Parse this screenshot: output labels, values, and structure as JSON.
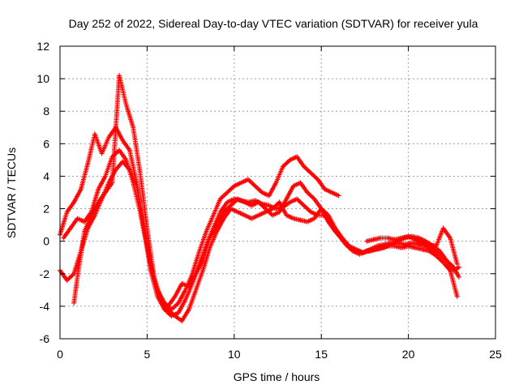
{
  "chart_data": {
    "type": "scatter",
    "title": "Day 252 of 2022, Sidereal Day-to-day VTEC variation (SDTVAR) for receiver yula",
    "xlabel": "GPS time / hours",
    "ylabel": "SDTVAR / TECUs",
    "xlim": [
      0,
      25
    ],
    "ylim": [
      -6,
      12
    ],
    "xticks": [
      0,
      5,
      10,
      15,
      20,
      25
    ],
    "yticks": [
      -6,
      -4,
      -2,
      0,
      2,
      4,
      6,
      8,
      10,
      12
    ],
    "xtick_labels": [
      "0",
      "5",
      "10",
      "15",
      "20",
      "25"
    ],
    "ytick_labels": [
      "-6",
      "-4",
      "-2",
      "0",
      "2",
      "4",
      "6",
      "8",
      "10",
      "12"
    ],
    "grid": true,
    "marker": "plus",
    "color": "#ff0000",
    "series": [
      {
        "name": "track-1",
        "x": [
          0.0,
          0.4,
          0.8,
          1.2,
          1.6,
          2.0,
          2.4,
          2.8,
          3.2,
          3.6,
          4.0,
          4.4,
          4.8,
          5.2,
          5.6,
          6.0,
          6.4,
          6.8,
          7.2,
          7.6,
          8.0,
          8.4,
          8.8,
          9.2,
          9.6,
          10.0,
          10.4,
          10.8,
          11.2,
          11.6,
          12.0,
          12.4,
          12.8,
          13.2,
          13.6,
          14.0,
          14.4,
          14.8,
          15.2,
          15.6,
          16.0
        ],
        "y": [
          0.4,
          1.8,
          2.4,
          3.2,
          4.8,
          6.6,
          5.4,
          6.4,
          7.0,
          6.2,
          5.6,
          3.6,
          1.0,
          -1.4,
          -3.0,
          -3.8,
          -4.2,
          -3.8,
          -3.0,
          -2.0,
          -0.6,
          0.6,
          1.6,
          2.6,
          3.0,
          3.4,
          3.6,
          3.8,
          3.4,
          3.0,
          2.8,
          3.6,
          4.6,
          5.0,
          5.2,
          4.6,
          4.2,
          3.8,
          3.2,
          3.0,
          2.8
        ]
      },
      {
        "name": "track-2",
        "x": [
          0.0,
          0.4,
          0.8,
          1.2,
          1.6,
          2.0,
          2.4,
          2.8,
          3.2,
          3.6,
          4.0,
          4.4,
          4.8,
          5.2,
          5.6,
          6.0,
          6.4,
          6.8,
          7.2,
          7.6,
          8.0,
          8.4,
          8.8,
          9.2,
          9.6,
          10.0,
          10.4,
          10.8,
          11.2,
          11.6,
          12.0,
          12.4,
          12.8,
          13.2,
          13.6,
          14.0,
          14.4,
          14.8,
          15.2,
          15.6,
          16.0,
          16.4,
          16.8,
          17.2,
          17.6,
          18.0,
          18.4,
          18.8,
          19.2,
          19.6,
          20.0,
          20.4,
          20.8,
          21.2,
          21.6,
          22.0,
          22.4,
          22.8
        ],
        "y": [
          -1.8,
          -2.4,
          -2.0,
          -0.6,
          0.8,
          1.6,
          2.6,
          3.6,
          4.4,
          4.9,
          4.4,
          3.4,
          1.0,
          -1.8,
          -3.4,
          -4.2,
          -4.6,
          -4.4,
          -3.6,
          -2.6,
          -1.4,
          -0.2,
          0.8,
          1.8,
          2.4,
          2.6,
          2.5,
          2.4,
          2.5,
          2.3,
          2.2,
          2.0,
          2.1,
          2.4,
          2.6,
          2.2,
          1.8,
          1.6,
          1.6,
          1.0,
          0.4,
          -0.2,
          -0.6,
          -0.8,
          -0.6,
          -0.5,
          -0.4,
          -0.3,
          -0.3,
          -0.4,
          -0.3,
          -0.4,
          -0.5,
          -0.6,
          -0.9,
          -1.3,
          -1.8,
          -3.4
        ]
      },
      {
        "name": "track-3",
        "x": [
          0.2,
          0.6,
          1.0,
          1.4,
          1.8,
          2.2,
          2.6,
          3.0,
          3.4,
          3.8,
          4.2,
          4.6,
          5.0,
          5.4,
          5.8,
          6.2,
          6.6,
          7.0,
          7.4,
          7.8,
          8.2,
          8.6,
          9.0,
          9.4,
          9.8,
          10.2,
          10.6,
          11.0,
          11.4,
          11.8,
          12.2,
          12.6,
          13.0,
          13.4,
          13.8,
          14.2,
          14.6,
          15.0,
          15.4,
          15.8,
          16.2,
          16.6,
          17.0,
          17.4,
          17.8,
          18.2,
          18.6,
          19.0,
          19.4,
          19.8,
          20.2,
          20.6,
          21.0,
          21.4,
          21.8,
          22.2,
          22.6,
          22.9
        ],
        "y": [
          0.2,
          0.8,
          1.4,
          1.2,
          1.8,
          3.2,
          4.0,
          5.2,
          5.6,
          5.0,
          3.6,
          1.8,
          -0.4,
          -2.4,
          -3.6,
          -4.0,
          -3.4,
          -2.6,
          -2.8,
          -2.0,
          -1.2,
          0.2,
          1.0,
          1.8,
          2.2,
          2.6,
          2.4,
          2.2,
          2.4,
          2.0,
          1.6,
          1.8,
          2.6,
          3.4,
          3.6,
          3.0,
          2.6,
          2.0,
          1.2,
          0.6,
          0.1,
          -0.3,
          -0.5,
          -0.7,
          -0.5,
          -0.3,
          -0.2,
          -0.1,
          -0.1,
          -0.2,
          -0.1,
          -0.2,
          -0.3,
          -0.5,
          -0.8,
          -1.2,
          -1.6,
          -2.2
        ]
      },
      {
        "name": "track-4",
        "x": [
          0.8,
          1.0,
          1.4,
          1.8,
          2.2,
          2.6,
          3.0,
          3.4,
          3.8,
          4.2,
          4.6,
          5.0,
          5.4,
          5.8,
          6.2,
          6.6,
          7.0,
          7.4,
          7.8,
          8.2,
          8.6,
          9.0,
          9.4,
          9.8,
          10.2,
          10.6,
          11.0,
          11.4,
          11.8,
          12.2,
          12.6,
          13.0,
          13.4,
          13.8,
          14.2,
          14.6,
          15.0,
          15.4,
          15.8,
          16.2,
          16.6,
          17.0,
          17.4,
          17.8,
          18.2,
          18.6,
          19.0,
          19.4,
          19.8,
          20.2,
          20.6,
          21.0,
          21.4,
          21.8,
          22.2,
          22.6,
          22.9
        ],
        "y": [
          -3.8,
          -2.2,
          0.6,
          1.6,
          2.4,
          3.0,
          3.6,
          10.2,
          8.4,
          7.0,
          4.2,
          0.8,
          -2.2,
          -3.6,
          -4.2,
          -4.6,
          -4.9,
          -4.2,
          -3.0,
          -1.8,
          -0.4,
          0.6,
          1.4,
          2.0,
          1.8,
          1.6,
          1.4,
          1.6,
          1.8,
          2.0,
          2.4,
          1.6,
          1.4,
          1.3,
          1.2,
          1.4,
          2.0,
          1.6,
          0.8,
          0.2,
          -0.3,
          -0.6,
          -0.7,
          -0.6,
          -0.5,
          -0.4,
          -0.2,
          0.0,
          0.2,
          0.3,
          0.2,
          0.0,
          -0.3,
          -0.6,
          -1.2,
          -1.8,
          -1.6
        ]
      },
      {
        "name": "track-5",
        "x": [
          17.6,
          18.0,
          18.4,
          18.8,
          19.2,
          19.6,
          20.0,
          20.4,
          20.8,
          21.2,
          21.6,
          22.0,
          22.4,
          22.8
        ],
        "y": [
          0.0,
          0.1,
          0.2,
          0.2,
          0.1,
          0.2,
          0.3,
          0.1,
          -0.1,
          -0.2,
          -0.3,
          0.8,
          0.2,
          -1.4
        ]
      }
    ]
  }
}
